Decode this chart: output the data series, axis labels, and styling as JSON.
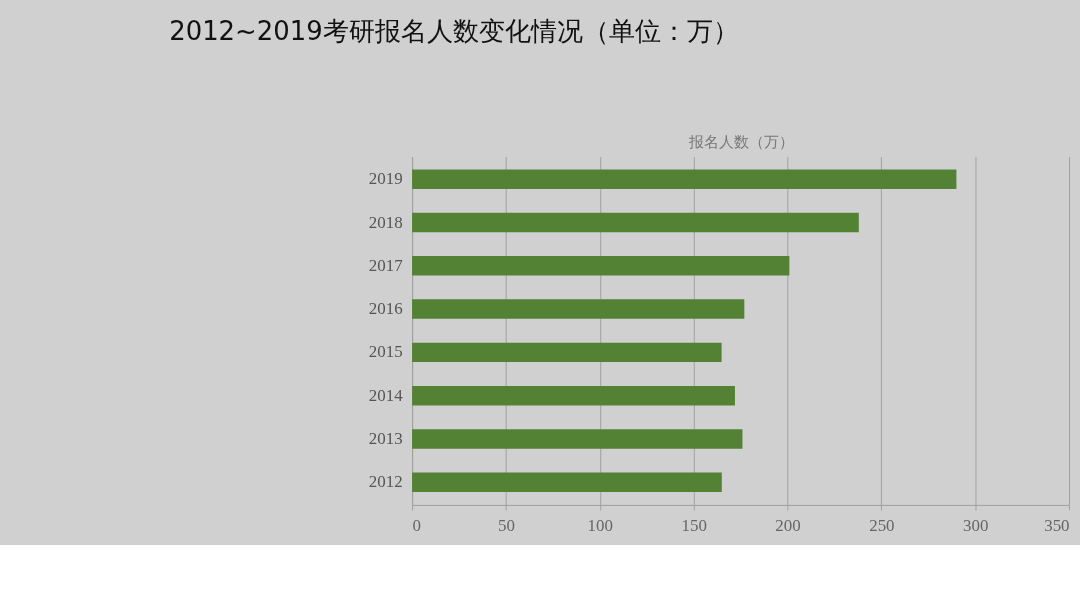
{
  "chart_data": {
    "type": "bar",
    "orientation": "horizontal",
    "title": "2012~2019考研报名人数变化情况（单位：万）",
    "xlabel": "报名人数（万）",
    "categories": [
      "2019",
      "2018",
      "2017",
      "2016",
      "2015",
      "2014",
      "2013",
      "2012"
    ],
    "values": [
      290,
      238,
      201,
      177,
      164.9,
      172,
      176,
      165
    ],
    "color": "#548235",
    "xlim": [
      0,
      350
    ],
    "xticks": [
      0,
      50,
      100,
      150,
      200,
      250,
      300,
      350
    ],
    "grid": "x"
  }
}
